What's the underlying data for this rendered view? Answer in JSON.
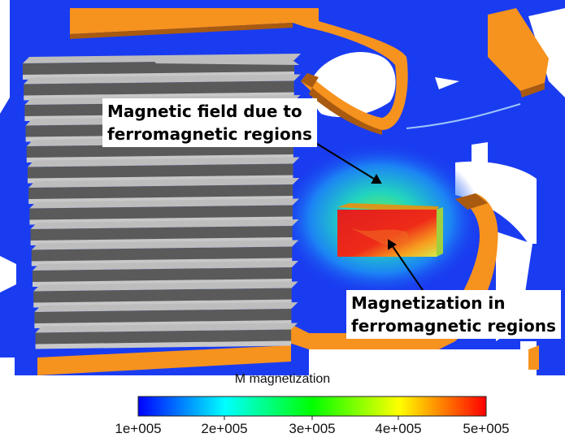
{
  "annotations": {
    "field_label_line1": "Magnetic field due to",
    "field_label_line2": "ferromagnetic regions",
    "magnetization_label_line1": "Magnetization in",
    "magnetization_label_line2": "ferromagnetic regions"
  },
  "colorbar": {
    "title": "M magnetization",
    "ticks": [
      "1e+005",
      "2e+005",
      "3e+005",
      "4e+005",
      "5e+005"
    ],
    "range": [
      100000,
      500000
    ],
    "colormap": [
      "#0000ff",
      "#00ffff",
      "#00ff00",
      "#ffff00",
      "#ff0000"
    ]
  },
  "colors": {
    "background_field": "#1a3cf0",
    "coil": "#f6921e",
    "coil_shade": "#a85a10",
    "lamination_top": "#bdbdbd",
    "lamination_side": "#5a5a5a",
    "magnet": "#e8261e"
  }
}
